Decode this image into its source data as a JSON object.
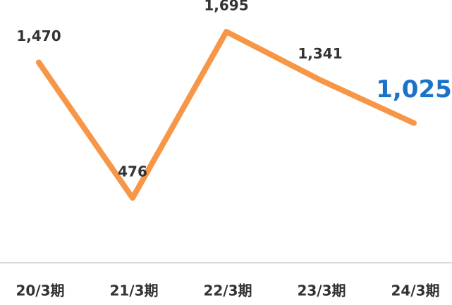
{
  "chart_data": {
    "type": "line",
    "categories": [
      "20/3期",
      "21/3期",
      "22/3期",
      "23/3期",
      "24/3期"
    ],
    "values": [
      1470,
      476,
      1695,
      1341,
      1025
    ],
    "value_labels": [
      "1,470",
      "476",
      "1,695",
      "1,341",
      "1,025"
    ],
    "color": "#f79646",
    "label_color": "#333333",
    "highlight_color": "#1a73c8"
  }
}
